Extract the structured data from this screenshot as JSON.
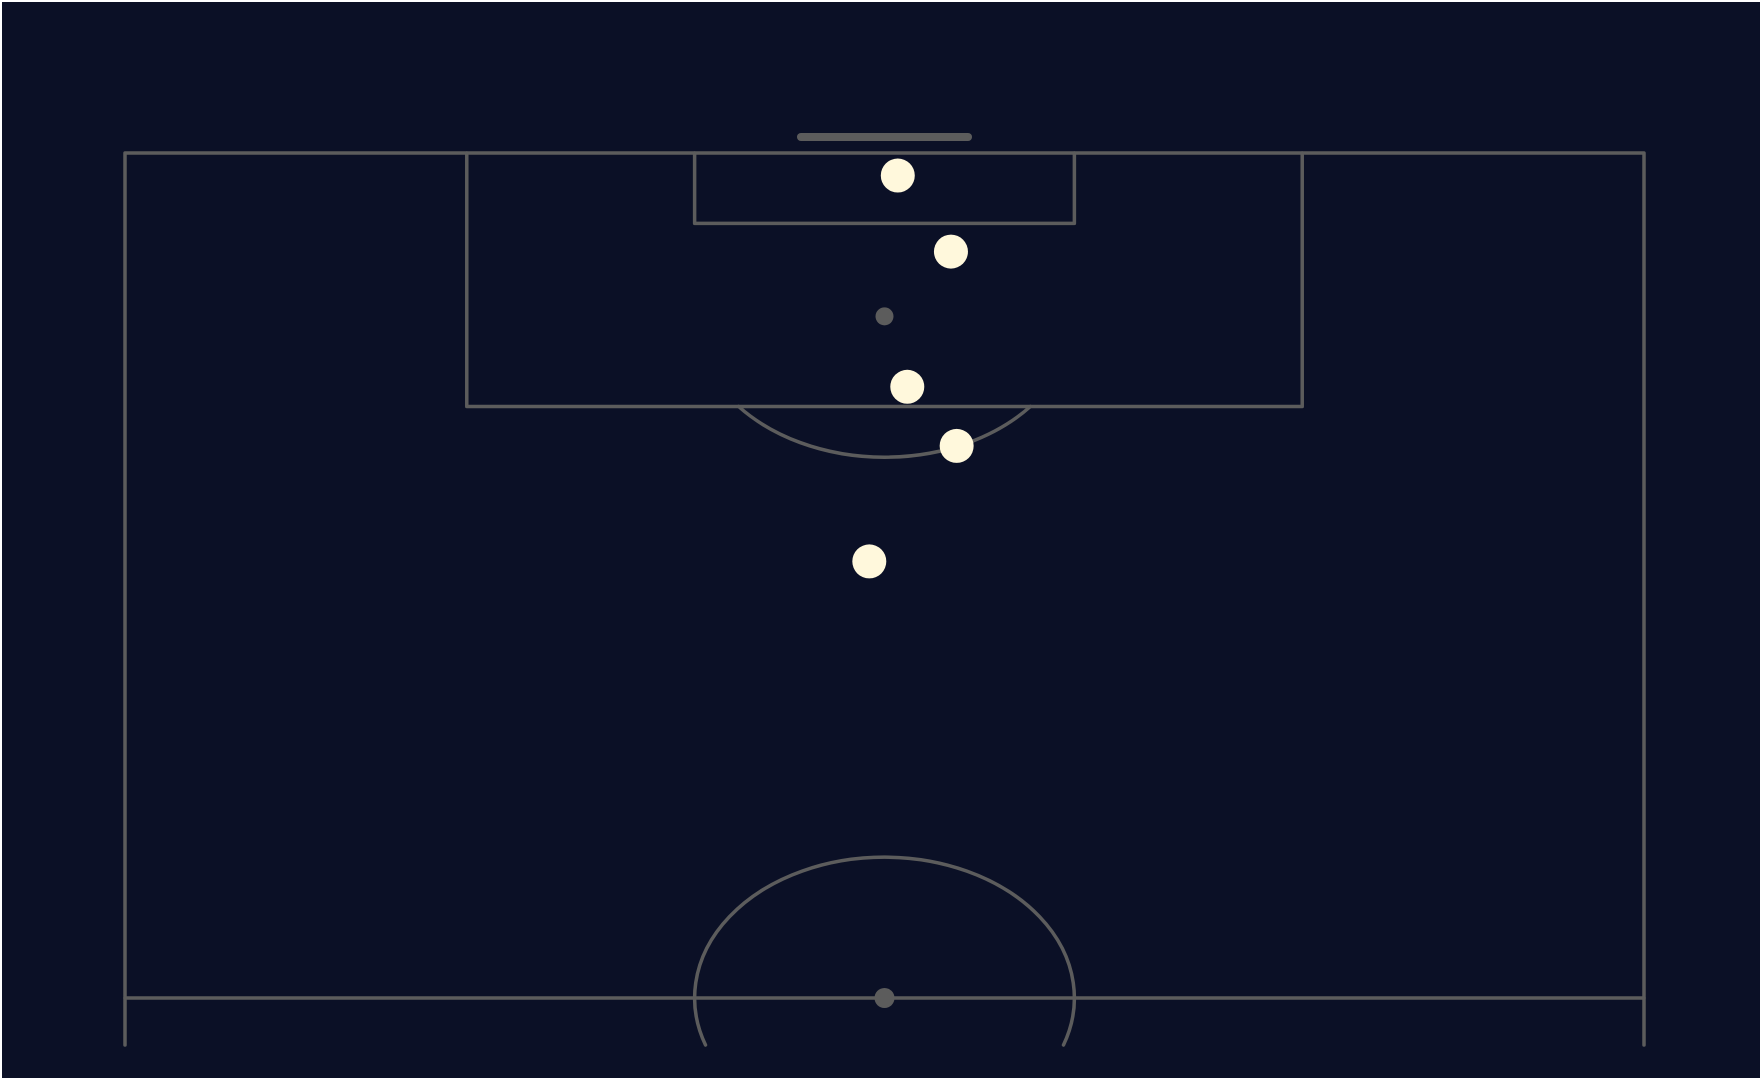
{
  "colors": {
    "background": "#0b1026",
    "pitch_lines": "#5c5c5c",
    "shots": "#fff8dc"
  },
  "chart_data": {
    "type": "scatter",
    "pitch": {
      "view": "half",
      "orientation": "vertical",
      "length": 120,
      "width": 80,
      "x_range": [
        0,
        80
      ],
      "y_range": [
        60,
        120
      ]
    },
    "series": [
      {
        "points": [
          {
            "x": 40.7,
            "y": 118.4
          },
          {
            "x": 43.5,
            "y": 113.0
          },
          {
            "x": 41.2,
            "y": 103.4
          },
          {
            "x": 43.8,
            "y": 99.2
          },
          {
            "x": 39.2,
            "y": 91.0
          }
        ]
      }
    ],
    "xlabel": "",
    "ylabel": "",
    "grid": false,
    "legend": false
  }
}
